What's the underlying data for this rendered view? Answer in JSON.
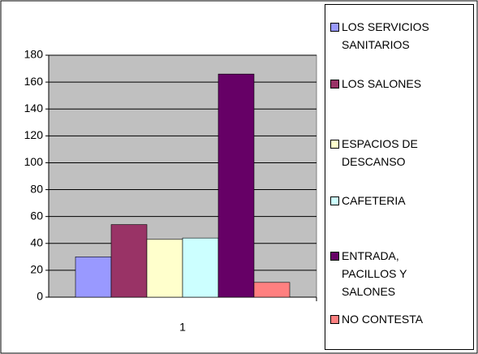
{
  "chart_data": {
    "type": "bar",
    "categories": [
      "1"
    ],
    "series": [
      {
        "name": "LOS SERVICIOS SANITARIOS",
        "color": "#9999ff",
        "values": [
          30
        ]
      },
      {
        "name": "LOS SALONES",
        "color": "#993366",
        "values": [
          54
        ]
      },
      {
        "name": "ESPACIOS DE DESCANSO",
        "color": "#ffffcc",
        "values": [
          43
        ]
      },
      {
        "name": "CAFETERIA",
        "color": "#ccffff",
        "values": [
          44
        ]
      },
      {
        "name": "ENTRADA, PACILLOS Y SALONES",
        "color": "#660066",
        "values": [
          166
        ]
      },
      {
        "name": "NO CONTESTA",
        "color": "#ff8080",
        "values": [
          11
        ]
      }
    ],
    "ylim": [
      0,
      180
    ],
    "yticks": [
      0,
      20,
      40,
      60,
      80,
      100,
      120,
      140,
      160,
      180
    ],
    "grid": true,
    "plot_background": "#c0c0c0",
    "legend": "right"
  }
}
